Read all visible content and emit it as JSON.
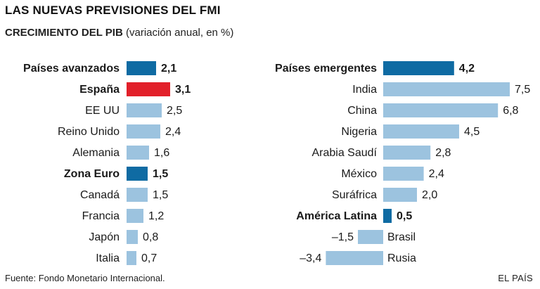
{
  "header": {
    "title": "LAS NUEVAS PREVISIONES DEL FMI",
    "subtitle_bold": "CRECIMIENTO DEL PIB",
    "subtitle_rest": " (variación anual, en %)"
  },
  "footer": {
    "source": "Fuente: Fondo Monetario Internacional.",
    "brand": "EL PAÍS"
  },
  "colors": {
    "dark": "#0f6ba3",
    "highlight": "#e2202a",
    "light": "#9cc3df"
  },
  "chart_data": [
    {
      "type": "bar",
      "orientation": "horizontal",
      "categories": [
        "Países avanzados",
        "España",
        "EE UU",
        "Reino Unido",
        "Alemania",
        "Zona Euro",
        "Canadá",
        "Francia",
        "Japón",
        "Italia"
      ],
      "values": [
        2.1,
        3.1,
        2.5,
        2.4,
        1.6,
        1.5,
        1.5,
        1.2,
        0.8,
        0.7
      ],
      "value_labels": [
        "2,1",
        "3,1",
        "2,5",
        "2,4",
        "1,6",
        "1,5",
        "1,5",
        "1,2",
        "0,8",
        "0,7"
      ],
      "bold": [
        true,
        true,
        false,
        false,
        false,
        true,
        false,
        false,
        false,
        false
      ],
      "color_keys": [
        "dark",
        "highlight",
        "light",
        "light",
        "light",
        "dark",
        "light",
        "light",
        "light",
        "light"
      ]
    },
    {
      "type": "bar",
      "orientation": "horizontal",
      "categories": [
        "Países emergentes",
        "India",
        "China",
        "Nigeria",
        "Arabia Saudí",
        "México",
        "Suráfrica",
        "América Latina",
        "Brasil",
        "Rusia"
      ],
      "values": [
        4.2,
        7.5,
        6.8,
        4.5,
        2.8,
        2.4,
        2.0,
        0.5,
        -1.5,
        -3.4
      ],
      "value_labels": [
        "4,2",
        "7,5",
        "6,8",
        "4,5",
        "2,8",
        "2,4",
        "2,0",
        "0,5",
        "–1,5",
        "–3,4"
      ],
      "bold": [
        true,
        false,
        false,
        false,
        false,
        false,
        false,
        true,
        false,
        false
      ],
      "color_keys": [
        "dark",
        "light",
        "light",
        "light",
        "light",
        "light",
        "light",
        "dark",
        "light",
        "light"
      ]
    }
  ]
}
